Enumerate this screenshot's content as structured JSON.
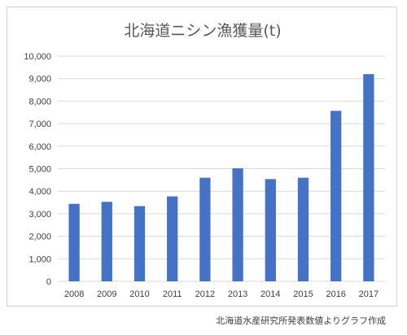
{
  "chart_data": {
    "type": "bar",
    "title": "北海道ニシン漁獲量(t)",
    "categories": [
      "2008",
      "2009",
      "2010",
      "2011",
      "2012",
      "2013",
      "2014",
      "2015",
      "2016",
      "2017"
    ],
    "values": [
      3440,
      3530,
      3340,
      3770,
      4600,
      5020,
      4540,
      4600,
      7570,
      9200
    ],
    "ylim": [
      0,
      10000
    ],
    "yticks": [
      0,
      1000,
      2000,
      3000,
      4000,
      5000,
      6000,
      7000,
      8000,
      9000,
      10000
    ],
    "ytick_labels": [
      "0",
      "1,000",
      "2,000",
      "3,000",
      "4,000",
      "5,000",
      "6,000",
      "7,000",
      "8,000",
      "9,000",
      "10,000"
    ],
    "grid": true,
    "bar_color": "#4472C4",
    "grid_color": "#d9d9d9"
  },
  "footer": {
    "source": "北海道水産研究所発表数値よりグラフ作成"
  }
}
